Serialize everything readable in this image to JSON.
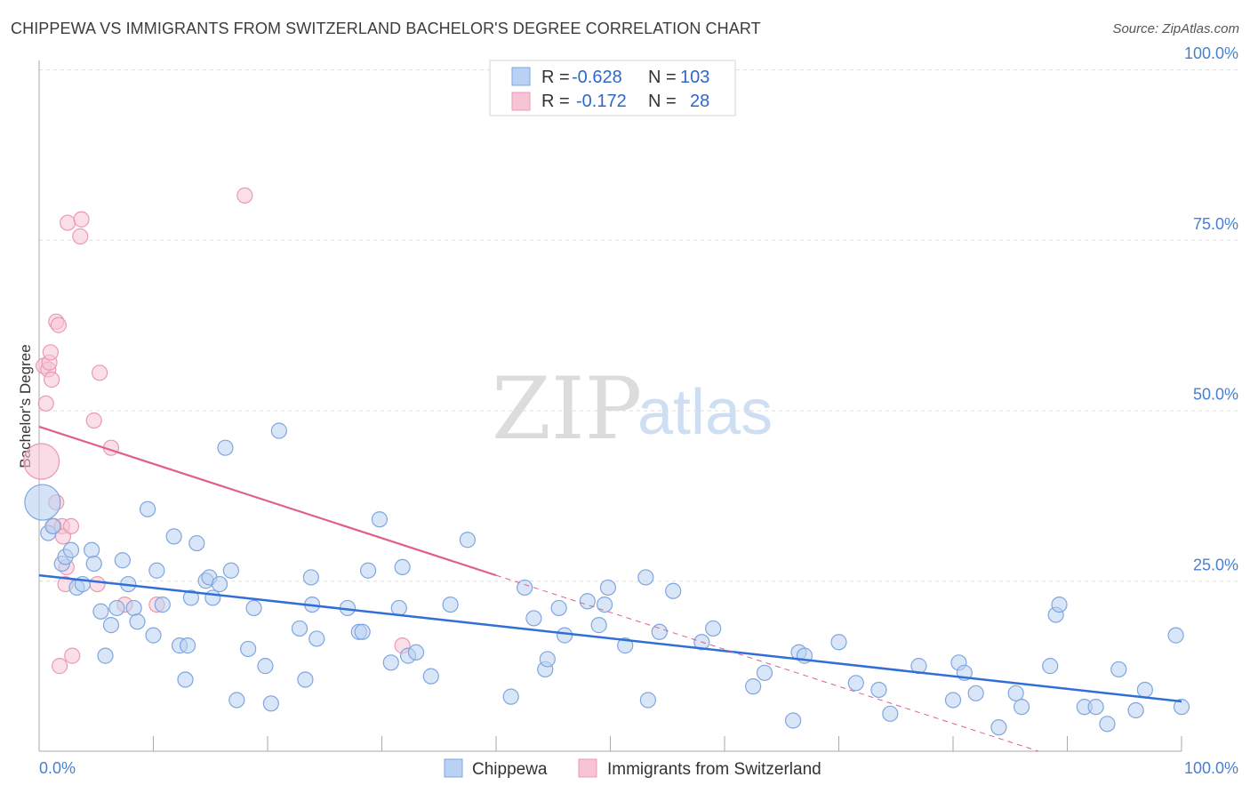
{
  "header": {
    "title": "CHIPPEWA VS IMMIGRANTS FROM SWITZERLAND BACHELOR'S DEGREE CORRELATION CHART",
    "source": "Source: ZipAtlas.com"
  },
  "watermark": {
    "zip": "ZIP",
    "atlas": "atlas"
  },
  "colors": {
    "blue_fill": "#b9d1f2",
    "blue_stroke": "#7fa6e0",
    "blue_line": "#2f6fd6",
    "pink_fill": "#f7c4d5",
    "pink_stroke": "#ec98b3",
    "pink_line": "#e0608a",
    "tick_text": "#4a7fd0",
    "grid": "#dddddd"
  },
  "legend": {
    "rows": [
      {
        "r_label": "R =",
        "r_value": "-0.628",
        "n_label": "N =",
        "n_value": "103"
      },
      {
        "r_label": "R =",
        "r_value": "-0.172",
        "n_label": "N =",
        "n_value": "28"
      }
    ]
  },
  "chart_data": {
    "type": "scatter",
    "title": "CHIPPEWA VS IMMIGRANTS FROM SWITZERLAND BACHELOR'S DEGREE CORRELATION CHART",
    "xlabel": "",
    "ylabel": "Bachelor's Degree",
    "xlim": [
      0,
      100
    ],
    "ylim": [
      0,
      100
    ],
    "x_tick_labels": [
      "0.0%",
      "100.0%"
    ],
    "y_ticks": [
      25,
      50,
      75,
      100
    ],
    "y_tick_labels": [
      "25.0%",
      "50.0%",
      "75.0%",
      "100.0%"
    ],
    "grid": true,
    "legend_position": "top-center",
    "series": [
      {
        "name": "Chippewa",
        "r": -0.628,
        "n": 103,
        "trend": {
          "x": [
            0,
            100
          ],
          "y": [
            25.8,
            7.3
          ]
        },
        "points": [
          {
            "x": 0.3,
            "y": 36.5,
            "big": true
          },
          {
            "x": 0.8,
            "y": 32.0
          },
          {
            "x": 1.2,
            "y": 33.0
          },
          {
            "x": 2.0,
            "y": 27.5
          },
          {
            "x": 2.3,
            "y": 28.5
          },
          {
            "x": 2.8,
            "y": 29.5
          },
          {
            "x": 3.3,
            "y": 24.0
          },
          {
            "x": 3.8,
            "y": 24.5
          },
          {
            "x": 4.6,
            "y": 29.5
          },
          {
            "x": 4.8,
            "y": 27.5
          },
          {
            "x": 5.4,
            "y": 20.5
          },
          {
            "x": 5.8,
            "y": 14.0
          },
          {
            "x": 6.3,
            "y": 18.5
          },
          {
            "x": 6.8,
            "y": 21.0
          },
          {
            "x": 7.3,
            "y": 28.0
          },
          {
            "x": 7.8,
            "y": 24.5
          },
          {
            "x": 8.3,
            "y": 21.0
          },
          {
            "x": 8.6,
            "y": 19.0
          },
          {
            "x": 9.5,
            "y": 35.5
          },
          {
            "x": 10.0,
            "y": 17.0
          },
          {
            "x": 10.3,
            "y": 26.5
          },
          {
            "x": 10.8,
            "y": 21.5
          },
          {
            "x": 11.8,
            "y": 31.5
          },
          {
            "x": 12.3,
            "y": 15.5
          },
          {
            "x": 12.8,
            "y": 10.5
          },
          {
            "x": 13.0,
            "y": 15.5
          },
          {
            "x": 13.3,
            "y": 22.5
          },
          {
            "x": 13.8,
            "y": 30.5
          },
          {
            "x": 14.6,
            "y": 25.0
          },
          {
            "x": 14.9,
            "y": 25.5
          },
          {
            "x": 15.2,
            "y": 22.5
          },
          {
            "x": 15.8,
            "y": 24.5
          },
          {
            "x": 16.3,
            "y": 44.5
          },
          {
            "x": 16.8,
            "y": 26.5
          },
          {
            "x": 17.3,
            "y": 7.5
          },
          {
            "x": 18.3,
            "y": 15.0
          },
          {
            "x": 18.8,
            "y": 21.0
          },
          {
            "x": 19.8,
            "y": 12.5
          },
          {
            "x": 20.3,
            "y": 7.0
          },
          {
            "x": 21.0,
            "y": 47.0
          },
          {
            "x": 22.8,
            "y": 18.0
          },
          {
            "x": 23.3,
            "y": 10.5
          },
          {
            "x": 23.8,
            "y": 25.5
          },
          {
            "x": 23.9,
            "y": 21.5
          },
          {
            "x": 24.3,
            "y": 16.5
          },
          {
            "x": 27.0,
            "y": 21.0
          },
          {
            "x": 28.0,
            "y": 17.5
          },
          {
            "x": 28.3,
            "y": 17.5
          },
          {
            "x": 28.8,
            "y": 26.5
          },
          {
            "x": 29.8,
            "y": 34.0
          },
          {
            "x": 30.8,
            "y": 13.0
          },
          {
            "x": 31.5,
            "y": 21.0
          },
          {
            "x": 31.8,
            "y": 27.0
          },
          {
            "x": 32.3,
            "y": 14.0
          },
          {
            "x": 33.0,
            "y": 14.5
          },
          {
            "x": 34.3,
            "y": 11.0
          },
          {
            "x": 36.0,
            "y": 21.5
          },
          {
            "x": 37.5,
            "y": 31.0
          },
          {
            "x": 41.3,
            "y": 8.0
          },
          {
            "x": 42.5,
            "y": 24.0
          },
          {
            "x": 43.3,
            "y": 19.5
          },
          {
            "x": 44.3,
            "y": 12.0
          },
          {
            "x": 44.5,
            "y": 13.5
          },
          {
            "x": 45.5,
            "y": 21.0
          },
          {
            "x": 46.0,
            "y": 17.0
          },
          {
            "x": 48.0,
            "y": 22.0
          },
          {
            "x": 49.0,
            "y": 18.5
          },
          {
            "x": 49.5,
            "y": 21.5
          },
          {
            "x": 49.8,
            "y": 24.0
          },
          {
            "x": 51.3,
            "y": 15.5
          },
          {
            "x": 53.1,
            "y": 25.5
          },
          {
            "x": 53.3,
            "y": 7.5
          },
          {
            "x": 54.3,
            "y": 17.5
          },
          {
            "x": 55.5,
            "y": 23.5
          },
          {
            "x": 58.0,
            "y": 16.0
          },
          {
            "x": 59.0,
            "y": 18.0
          },
          {
            "x": 62.5,
            "y": 9.5
          },
          {
            "x": 63.5,
            "y": 11.5
          },
          {
            "x": 66.0,
            "y": 4.5
          },
          {
            "x": 66.5,
            "y": 14.5
          },
          {
            "x": 67.0,
            "y": 14.0
          },
          {
            "x": 70.0,
            "y": 16.0
          },
          {
            "x": 71.5,
            "y": 10.0
          },
          {
            "x": 73.5,
            "y": 9.0
          },
          {
            "x": 74.5,
            "y": 5.5
          },
          {
            "x": 77.0,
            "y": 12.5
          },
          {
            "x": 80.0,
            "y": 7.5
          },
          {
            "x": 80.5,
            "y": 13.0
          },
          {
            "x": 81.0,
            "y": 11.5
          },
          {
            "x": 82.0,
            "y": 8.5
          },
          {
            "x": 84.0,
            "y": 3.5
          },
          {
            "x": 85.5,
            "y": 8.5
          },
          {
            "x": 86.0,
            "y": 6.5
          },
          {
            "x": 88.5,
            "y": 12.5
          },
          {
            "x": 89.0,
            "y": 20.0
          },
          {
            "x": 89.3,
            "y": 21.5
          },
          {
            "x": 91.5,
            "y": 6.5
          },
          {
            "x": 92.5,
            "y": 6.5
          },
          {
            "x": 93.5,
            "y": 4.0
          },
          {
            "x": 94.5,
            "y": 12.0
          },
          {
            "x": 96.0,
            "y": 6.0
          },
          {
            "x": 96.8,
            "y": 9.0
          },
          {
            "x": 99.5,
            "y": 17.0
          },
          {
            "x": 100.0,
            "y": 6.5
          }
        ]
      },
      {
        "name": "Immigrants from Switzerland",
        "r": -0.172,
        "n": 28,
        "trend": {
          "x": [
            0,
            40
          ],
          "y": [
            47.6,
            25.8
          ],
          "dashed_to": {
            "x": 100,
            "y": -6.8
          }
        },
        "points": [
          {
            "x": 0.2,
            "y": 42.5,
            "big": true
          },
          {
            "x": 0.4,
            "y": 56.5
          },
          {
            "x": 0.6,
            "y": 51.0
          },
          {
            "x": 0.8,
            "y": 56.0
          },
          {
            "x": 0.9,
            "y": 57.0
          },
          {
            "x": 1.0,
            "y": 58.5
          },
          {
            "x": 1.1,
            "y": 54.5
          },
          {
            "x": 1.3,
            "y": 33.0
          },
          {
            "x": 1.5,
            "y": 36.5
          },
          {
            "x": 1.5,
            "y": 63.0
          },
          {
            "x": 1.7,
            "y": 62.5
          },
          {
            "x": 1.8,
            "y": 12.5
          },
          {
            "x": 2.0,
            "y": 33.0
          },
          {
            "x": 2.1,
            "y": 31.5
          },
          {
            "x": 2.3,
            "y": 24.5
          },
          {
            "x": 2.4,
            "y": 27.0
          },
          {
            "x": 2.5,
            "y": 77.5
          },
          {
            "x": 2.8,
            "y": 33.0
          },
          {
            "x": 2.9,
            "y": 14.0
          },
          {
            "x": 3.6,
            "y": 75.5
          },
          {
            "x": 3.7,
            "y": 78.0
          },
          {
            "x": 4.8,
            "y": 48.5
          },
          {
            "x": 5.1,
            "y": 24.5
          },
          {
            "x": 5.3,
            "y": 55.5
          },
          {
            "x": 6.3,
            "y": 44.5
          },
          {
            "x": 7.5,
            "y": 21.5
          },
          {
            "x": 10.3,
            "y": 21.5
          },
          {
            "x": 18.0,
            "y": 81.5
          },
          {
            "x": 31.8,
            "y": 15.5
          }
        ]
      }
    ]
  },
  "bottom_legend": {
    "items": [
      {
        "label": "Chippewa"
      },
      {
        "label": "Immigrants from Switzerland"
      }
    ]
  }
}
